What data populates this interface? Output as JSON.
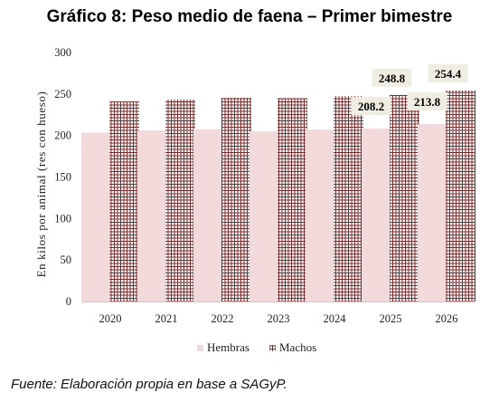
{
  "title": "Gráfico 8: Peso medio de faena – Primer bimestre",
  "source": "Fuente: Elaboración propia en base a SAGyP.",
  "colors": {
    "hembras": "#f2d9da",
    "machos_line": "#7a2a2a",
    "label_bg": "#efece2"
  },
  "chart_data": {
    "type": "bar",
    "title": "Gráfico 8: Peso medio de faena – Primer bimestre",
    "ylabel": "En kilos por animal (res con hueso)",
    "xlabel": "",
    "ylim": [
      0,
      300
    ],
    "yticks": [
      0,
      50,
      100,
      150,
      200,
      250,
      300
    ],
    "categories": [
      "2020",
      "2021",
      "2022",
      "2023",
      "2024",
      "2025",
      "2026"
    ],
    "series": [
      {
        "name": "Hembras",
        "values": [
          203.5,
          206.0,
          207.5,
          205.0,
          207.0,
          208.2,
          213.8
        ]
      },
      {
        "name": "Machos",
        "values": [
          241.0,
          243.5,
          245.5,
          245.0,
          247.5,
          248.8,
          254.4
        ]
      }
    ],
    "data_labels": [
      {
        "series": "Hembras",
        "category": "2025",
        "text": "208.2"
      },
      {
        "series": "Machos",
        "category": "2025",
        "text": "248.8"
      },
      {
        "series": "Hembras",
        "category": "2026",
        "text": "213.8"
      },
      {
        "series": "Machos",
        "category": "2026",
        "text": "254.4"
      }
    ],
    "legend": {
      "placement": "bottom",
      "entries": [
        "Hembras",
        "Machos"
      ]
    },
    "grid": false
  }
}
